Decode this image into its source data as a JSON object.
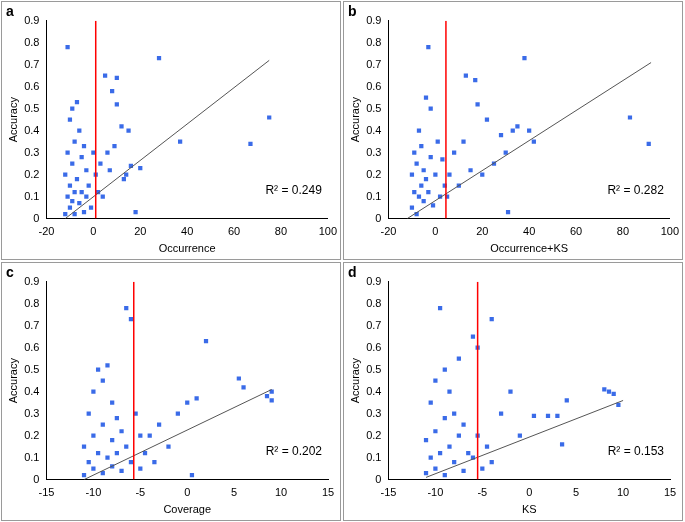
{
  "chart_data": [
    {
      "type": "scatter",
      "title": "a",
      "x_label": "Occurrence",
      "y_label": "Accuracy",
      "color": "#3a6be8",
      "marker": "square",
      "grid": false,
      "x": [
        -12,
        -12,
        -11,
        -11,
        -11,
        -10,
        -10,
        -10,
        -9,
        -9,
        -9,
        -8,
        -8,
        -8,
        -7,
        -7,
        -6,
        -6,
        -5,
        -5,
        -4,
        -4,
        -3,
        -3,
        -2,
        -1,
        0,
        1,
        2,
        3,
        4,
        5,
        6,
        7,
        8,
        9,
        10,
        10,
        12,
        13,
        14,
        15,
        16,
        18,
        20,
        28,
        37,
        67,
        75
      ],
      "values": [
        0.02,
        0.2,
        0.78,
        0.1,
        0.3,
        0.45,
        0.05,
        0.15,
        0.5,
        0.25,
        0.08,
        0.35,
        0.12,
        0.02,
        0.53,
        0.18,
        0.4,
        0.07,
        0.28,
        0.12,
        0.33,
        0.03,
        0.22,
        0.1,
        0.15,
        0.05,
        0.3,
        0.2,
        0.12,
        0.25,
        0.1,
        0.65,
        0.3,
        0.22,
        0.58,
        0.33,
        0.64,
        0.52,
        0.42,
        0.18,
        0.2,
        0.4,
        0.24,
        0.03,
        0.23,
        0.73,
        0.35,
        0.34,
        0.46
      ],
      "xlim": [
        -20,
        100
      ],
      "xticks": [
        -20,
        0,
        20,
        40,
        60,
        80,
        100
      ],
      "ylim": [
        0,
        0.9
      ],
      "yticks": [
        0,
        0.1,
        0.2,
        0.3,
        0.4,
        0.5,
        0.6,
        0.7,
        0.8,
        0.9
      ],
      "trend_line": {
        "x": [
          -12,
          75
        ],
        "y": [
          0,
          0.72
        ]
      },
      "threshold_x": 1,
      "annotation": "R² = 0.249"
    },
    {
      "type": "scatter",
      "title": "b",
      "x_label": "Occurrence+KS",
      "y_label": "Accuracy",
      "color": "#3a6be8",
      "marker": "square",
      "grid": false,
      "x": [
        -10,
        -10,
        -9,
        -9,
        -8,
        -8,
        -7,
        -7,
        -6,
        -6,
        -5,
        -5,
        -4,
        -4,
        -3,
        -3,
        -2,
        -2,
        -1,
        0,
        1,
        2,
        3,
        4,
        5,
        6,
        8,
        10,
        12,
        13,
        15,
        17,
        18,
        20,
        22,
        25,
        28,
        30,
        31,
        33,
        35,
        38,
        40,
        42,
        83,
        91
      ],
      "values": [
        0.05,
        0.2,
        0.12,
        0.3,
        0.02,
        0.25,
        0.4,
        0.1,
        0.15,
        0.33,
        0.08,
        0.22,
        0.55,
        0.18,
        0.78,
        0.12,
        0.5,
        0.28,
        0.06,
        0.2,
        0.35,
        0.1,
        0.27,
        0.15,
        0.1,
        0.2,
        0.3,
        0.15,
        0.35,
        0.65,
        0.22,
        0.63,
        0.52,
        0.2,
        0.45,
        0.25,
        0.38,
        0.3,
        0.03,
        0.4,
        0.42,
        0.73,
        0.4,
        0.35,
        0.46,
        0.34
      ],
      "xlim": [
        -20,
        100
      ],
      "xticks": [
        -20,
        0,
        20,
        40,
        60,
        80,
        100
      ],
      "ylim": [
        0,
        0.9
      ],
      "yticks": [
        0,
        0.1,
        0.2,
        0.3,
        0.4,
        0.5,
        0.6,
        0.7,
        0.8,
        0.9
      ],
      "trend_line": {
        "x": [
          -12,
          92
        ],
        "y": [
          0,
          0.71
        ]
      },
      "threshold_x": 4.5,
      "annotation": "R² = 0.282"
    },
    {
      "type": "scatter",
      "title": "c",
      "x_label": "Coverage",
      "y_label": "Accuracy",
      "color": "#3a6be8",
      "marker": "square",
      "grid": false,
      "x": [
        -11,
        -11,
        -10.5,
        -10.5,
        -10,
        -10,
        -10,
        -9.5,
        -9.5,
        -9,
        -9,
        -9,
        -8.5,
        -8.5,
        -8,
        -8,
        -8,
        -7.5,
        -7.5,
        -7,
        -7,
        -6.5,
        -6.5,
        -6,
        -6,
        -5.5,
        -5,
        -5,
        -4.5,
        -4,
        -3.5,
        -3,
        -2,
        -1,
        0,
        0.5,
        1,
        2,
        5.5,
        6,
        8.5,
        9,
        9
      ],
      "values": [
        0.02,
        0.15,
        0.08,
        0.3,
        0.05,
        0.2,
        0.4,
        0.12,
        0.5,
        0.03,
        0.25,
        0.45,
        0.52,
        0.1,
        0.06,
        0.18,
        0.35,
        0.28,
        0.12,
        0.04,
        0.22,
        0.78,
        0.15,
        0.73,
        0.08,
        0.3,
        0.2,
        0.05,
        0.12,
        0.2,
        0.08,
        0.25,
        0.15,
        0.3,
        0.35,
        0.02,
        0.37,
        0.63,
        0.46,
        0.42,
        0.38,
        0.4,
        0.36
      ],
      "xlim": [
        -15,
        15
      ],
      "xticks": [
        -15,
        -10,
        -5,
        0,
        5,
        10,
        15
      ],
      "ylim": [
        0,
        0.9
      ],
      "yticks": [
        0,
        0.1,
        0.2,
        0.3,
        0.4,
        0.5,
        0.6,
        0.7,
        0.8,
        0.9
      ],
      "trend_line": {
        "x": [
          -11,
          9
        ],
        "y": [
          0,
          0.41
        ]
      },
      "threshold_x": -5.7,
      "annotation": "R² = 0.202"
    },
    {
      "type": "scatter",
      "title": "d",
      "x_label": "KS",
      "y_label": "Accuracy",
      "color": "#3a6be8",
      "marker": "square",
      "grid": false,
      "x": [
        -11,
        -11,
        -10.5,
        -10.5,
        -10,
        -10,
        -10,
        -9.5,
        -9.5,
        -9,
        -9,
        -9,
        -8.5,
        -8.5,
        -8,
        -8,
        -7.5,
        -7.5,
        -7,
        -7,
        -6.5,
        -6,
        -6,
        -5.5,
        -5.5,
        -5,
        -4.5,
        -4,
        -4,
        -3,
        -2,
        -1,
        0.5,
        2,
        3,
        3.5,
        4,
        8,
        8.5,
        9,
        9.5
      ],
      "values": [
        0.03,
        0.18,
        0.1,
        0.35,
        0.05,
        0.22,
        0.45,
        0.78,
        0.12,
        0.02,
        0.28,
        0.5,
        0.15,
        0.4,
        0.08,
        0.3,
        0.2,
        0.55,
        0.04,
        0.25,
        0.12,
        0.65,
        0.1,
        0.6,
        0.2,
        0.05,
        0.15,
        0.73,
        0.08,
        0.3,
        0.4,
        0.2,
        0.29,
        0.29,
        0.29,
        0.16,
        0.36,
        0.41,
        0.4,
        0.39,
        0.34
      ],
      "xlim": [
        -15,
        15
      ],
      "xticks": [
        -15,
        -10,
        -5,
        0,
        5,
        10,
        15
      ],
      "ylim": [
        0,
        0.9
      ],
      "yticks": [
        0,
        0.1,
        0.2,
        0.3,
        0.4,
        0.5,
        0.6,
        0.7,
        0.8,
        0.9
      ],
      "trend_line": {
        "x": [
          -11,
          10
        ],
        "y": [
          0.01,
          0.36
        ]
      },
      "threshold_x": -5.5,
      "annotation": "R² = 0.153"
    }
  ]
}
